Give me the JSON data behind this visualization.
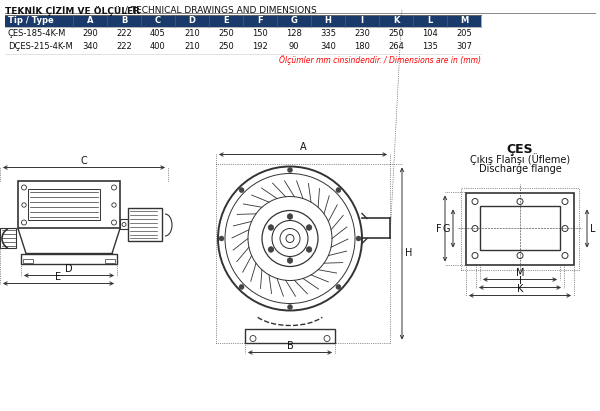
{
  "title_bold": "TEKNİK ÇİZİM VE ÖLÇÜLER",
  "title_light": " / TECHNICAL DRAWINGS AND DIMENSIONS",
  "table_header": [
    "Tip / Type",
    "A",
    "B",
    "C",
    "D",
    "E",
    "F",
    "G",
    "H",
    "I",
    "K",
    "L",
    "M"
  ],
  "table_rows": [
    [
      "ÇES-185-4K-M",
      "290",
      "222",
      "405",
      "210",
      "250",
      "150",
      "128",
      "335",
      "230",
      "250",
      "104",
      "205"
    ],
    [
      "DÇES-215-4K-M",
      "340",
      "222",
      "400",
      "210",
      "250",
      "192",
      "90",
      "340",
      "180",
      "264",
      "135",
      "307"
    ]
  ],
  "note": "Ölçümler mm cinsindendir. / Dimensions are in (mm)",
  "header_bg": "#1a3a6b",
  "header_fg": "#ffffff",
  "flange_title": "ÇES",
  "flange_sub1": "Çıkış Flanşı (Üfleme)",
  "flange_sub2": "Discharge flange",
  "bg_color": "#ffffff",
  "line_color": "#333333",
  "dim_line_color": "#333333"
}
